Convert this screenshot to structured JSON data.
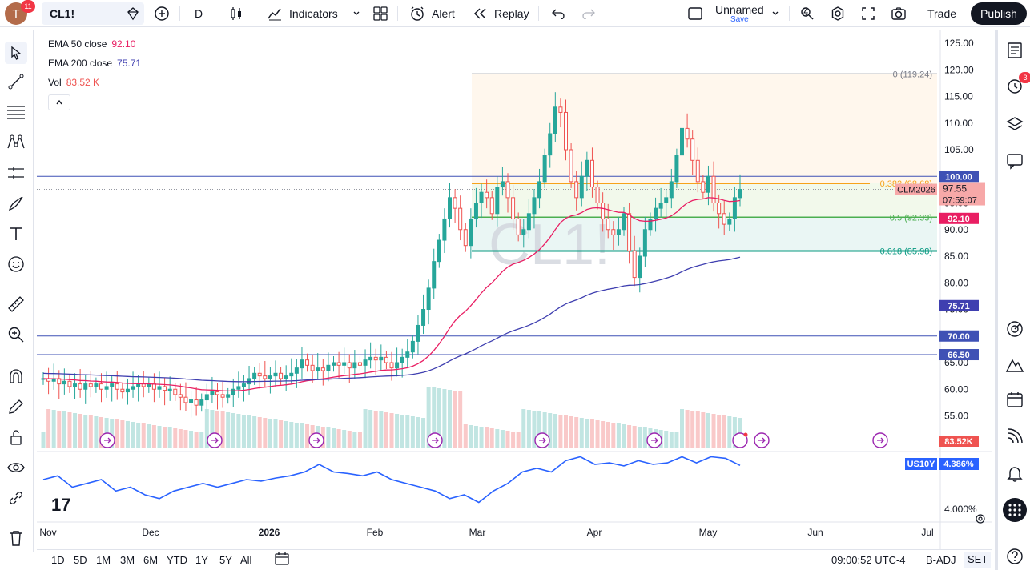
{
  "topbar": {
    "avatar_letter": "T",
    "avatar_badge": "11",
    "symbol": "CL1!",
    "interval": "D",
    "indicators_label": "Indicators",
    "alert_label": "Alert",
    "replay_label": "Replay",
    "layout_name": "Unnamed",
    "layout_save": "Save",
    "trade_label": "Trade",
    "publish_label": "Publish"
  },
  "legend": {
    "ema50_label": "EMA 50 close",
    "ema50_value": "92.10",
    "ema200_label": "EMA 200 close",
    "ema200_value": "75.71",
    "vol_label": "Vol",
    "vol_value": "83.52 K"
  },
  "watermark": "CL1!",
  "fib": {
    "level0": "0 (119.24)",
    "level382": "0.382 (98.68)",
    "level5": "0.5 (92.33)",
    "level618": "0.618 (85.98)"
  },
  "price_axis": [
    "125.00",
    "120.00",
    "115.00",
    "110.00",
    "105.00",
    "100.00",
    "95.00",
    "90.00",
    "85.00",
    "80.00",
    "75.00",
    "70.00",
    "65.00",
    "60.00",
    "55.00"
  ],
  "price_tags": {
    "line100": "100.00",
    "current": "97.55",
    "countdown": "07:59:07",
    "contract": "CLM2026",
    "ema50": "92.10",
    "ema200": "75.71",
    "line70": "70.00",
    "line66": "66.50",
    "vol": "83.52K"
  },
  "lower_pane": {
    "symbol": "US10Y",
    "value": "4.386%",
    "axis_label": "4.000%"
  },
  "time_axis": [
    "Nov",
    "Dec",
    "2026",
    "Feb",
    "Mar",
    "Apr",
    "May",
    "Jun",
    "Jul"
  ],
  "bottombar": {
    "ranges": [
      "1D",
      "5D",
      "1M",
      "3M",
      "6M",
      "YTD",
      "1Y",
      "5Y",
      "All"
    ],
    "clock": "09:00:52 UTC-4",
    "badj": "B-ADJ",
    "set": "SET"
  },
  "right_toolbar": {
    "alerts_badge": "3"
  },
  "colors": {
    "ema50": "#e91e63",
    "ema200": "#3f3fb0",
    "up": "#26a69a",
    "down": "#ef5350",
    "fib382": "#f7a21b",
    "fib5": "#4caf50",
    "fib618": "#089981",
    "hline": "#3f51b5"
  }
}
